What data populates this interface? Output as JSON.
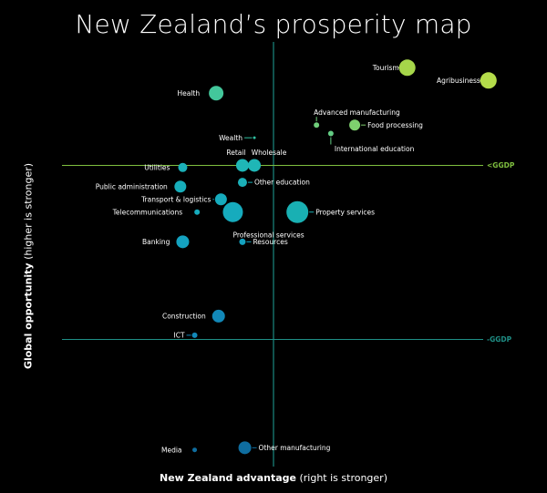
{
  "chart_data": {
    "type": "scatter",
    "title": "New Zealand’s prosperity map",
    "xlabel_bold": "New Zealand advantage",
    "xlabel_rest": " (right is stronger)",
    "ylabel_bold": "Global opportunity",
    "ylabel_rest": " (higher is stronger)",
    "xlim": [
      0,
      100
    ],
    "ylim": [
      0,
      100
    ],
    "reference_lines": [
      {
        "label": "<GGDP",
        "orientation": "horizontal",
        "y": 70.5,
        "color": "#7fbf3f"
      },
      {
        "label": "-GGDP",
        "orientation": "horizontal",
        "y": 29.5,
        "color": "#1f8f86"
      }
    ],
    "vertical_reference": {
      "x": 50
    },
    "points": [
      {
        "name": "Tourism",
        "x": 78,
        "y": 93.5,
        "size": 9,
        "color": "#a6d64a"
      },
      {
        "name": "Agribusiness",
        "x": 95,
        "y": 90.5,
        "size": 9,
        "color": "#b4dc4a"
      },
      {
        "name": "Health",
        "x": 38,
        "y": 87.5,
        "size": 8,
        "color": "#43c79b"
      },
      {
        "name": "Advanced manufacturing",
        "x": 59,
        "y": 80,
        "size": 3,
        "color": "#6fce7a"
      },
      {
        "name": "Food processing",
        "x": 67,
        "y": 80,
        "size": 6,
        "color": "#7ed06e"
      },
      {
        "name": "International education",
        "x": 62,
        "y": 78,
        "size": 3,
        "color": "#63cc83"
      },
      {
        "name": "Wealth",
        "x": 46,
        "y": 77,
        "size": 1.5,
        "color": "#2fbfa0"
      },
      {
        "name": "Retail",
        "x": 43.5,
        "y": 70.5,
        "size": 7,
        "color": "#1fb6b6"
      },
      {
        "name": "Wholesale",
        "x": 46,
        "y": 70.5,
        "size": 7,
        "color": "#1fb6b6"
      },
      {
        "name": "Utilities",
        "x": 31,
        "y": 70,
        "size": 5,
        "color": "#1bb0b8"
      },
      {
        "name": "Other education",
        "x": 43.5,
        "y": 66.5,
        "size": 5,
        "color": "#1bb0b8"
      },
      {
        "name": "Public administration",
        "x": 30.5,
        "y": 65.5,
        "size": 6.5,
        "color": "#17aebb"
      },
      {
        "name": "Transport & logistics",
        "x": 39,
        "y": 62.5,
        "size": 6.5,
        "color": "#16abbd"
      },
      {
        "name": "Telecommunications",
        "x": 34,
        "y": 59.5,
        "size": 3,
        "color": "#16abbd"
      },
      {
        "name": "Professional services",
        "x": 41.5,
        "y": 59.5,
        "size": 11,
        "color": "#16abbd"
      },
      {
        "name": "Property services",
        "x": 55,
        "y": 59.5,
        "size": 12,
        "color": "#19b0b3"
      },
      {
        "name": "Resources",
        "x": 43.5,
        "y": 52.5,
        "size": 3.5,
        "color": "#14a2c0"
      },
      {
        "name": "Banking",
        "x": 31,
        "y": 52.5,
        "size": 7,
        "color": "#14a2c0"
      },
      {
        "name": "Construction",
        "x": 38.5,
        "y": 35,
        "size": 7,
        "color": "#1288b8"
      },
      {
        "name": "ICT",
        "x": 33.5,
        "y": 30.5,
        "size": 3,
        "color": "#1288b8"
      },
      {
        "name": "Other manufacturing",
        "x": 44,
        "y": 4,
        "size": 7,
        "color": "#0f6d9f"
      },
      {
        "name": "Media",
        "x": 33.5,
        "y": 3.5,
        "size": 2.5,
        "color": "#0f6d9f"
      }
    ]
  }
}
